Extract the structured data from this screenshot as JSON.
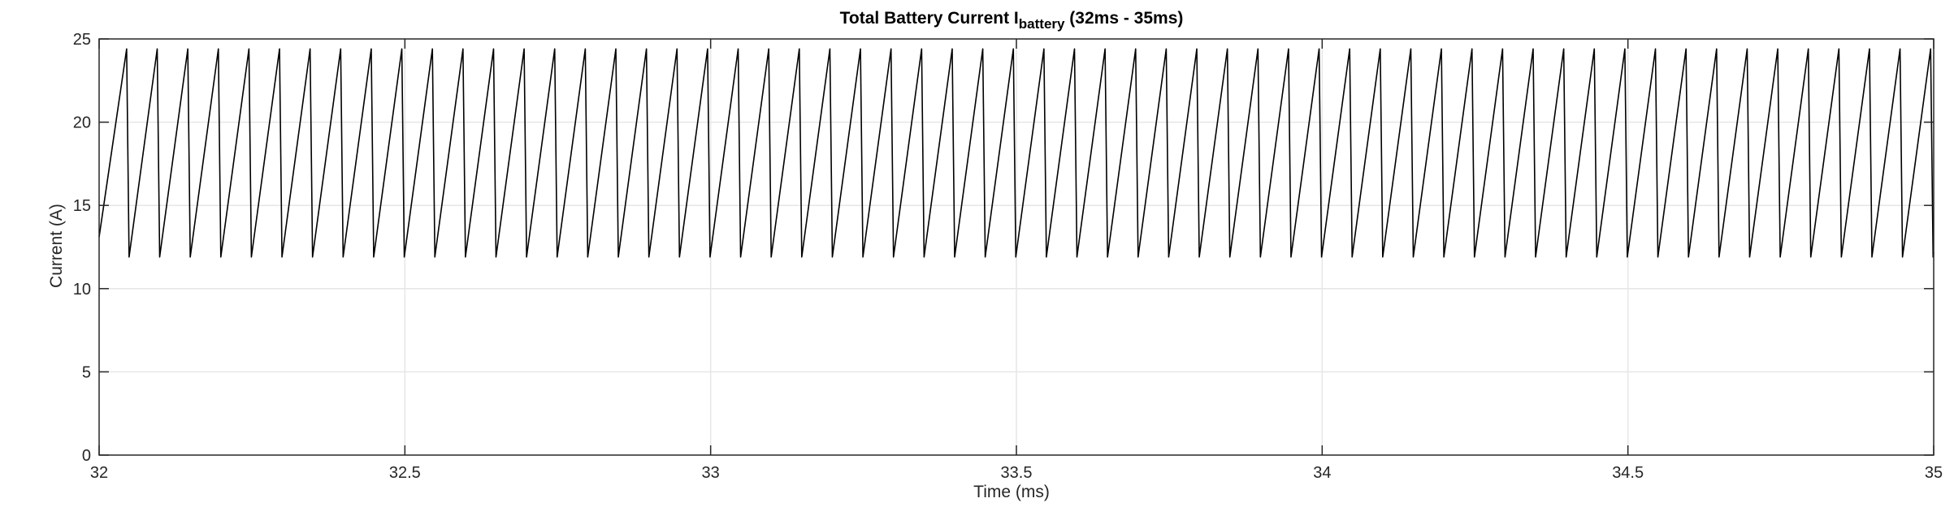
{
  "chart_data": {
    "type": "line",
    "title": {
      "main": "Total Battery Current I",
      "subscript": "battery",
      "suffix": " (32ms - 35ms)"
    },
    "xlabel": "Time (ms)",
    "ylabel": "Current (A)",
    "xlim": [
      32,
      35
    ],
    "ylim": [
      0,
      25
    ],
    "xticks": [
      32,
      32.5,
      33,
      33.5,
      34,
      34.5,
      35
    ],
    "xtick_labels": [
      "32",
      "32.5",
      "33",
      "33.5",
      "34",
      "34.5",
      "35"
    ],
    "yticks": [
      0,
      5,
      10,
      15,
      20,
      25
    ],
    "ytick_labels": [
      "0",
      "5",
      "10",
      "15",
      "20",
      "25"
    ],
    "grid": true,
    "legend": false,
    "series": [
      {
        "shape": "sawtooth",
        "color": "#000000",
        "period_ms": 0.05,
        "min": 11.9,
        "max": 24.4,
        "start_value": 13.1,
        "first_peak_ms": 32.045,
        "fall_duration_ms": 0.004,
        "end_value": 13.1
      }
    ]
  }
}
